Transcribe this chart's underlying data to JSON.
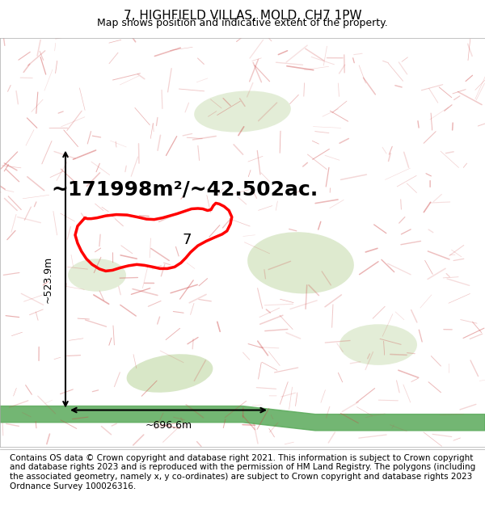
{
  "title": "7, HIGHFIELD VILLAS, MOLD, CH7 1PW",
  "subtitle": "Map shows position and indicative extent of the property.",
  "area_text": "~171998m²/~42.502ac.",
  "dim_width": "~696.6m",
  "dim_height": "~523.9m",
  "footer_text": "Contains OS data © Crown copyright and database right 2021. This information is subject to Crown copyright and database rights 2023 and is reproduced with the permission of HM Land Registry. The polygons (including the associated geometry, namely x, y co-ordinates) are subject to Crown copyright and database rights 2023 Ordnance Survey 100026316.",
  "title_fontsize": 11,
  "subtitle_fontsize": 9,
  "area_fontsize": 18,
  "dim_fontsize": 9,
  "footer_fontsize": 7.5,
  "map_bg": "#f5f0eb",
  "border_color": "#aaaaaa",
  "poly_color": "red",
  "poly_lw": 2.5
}
